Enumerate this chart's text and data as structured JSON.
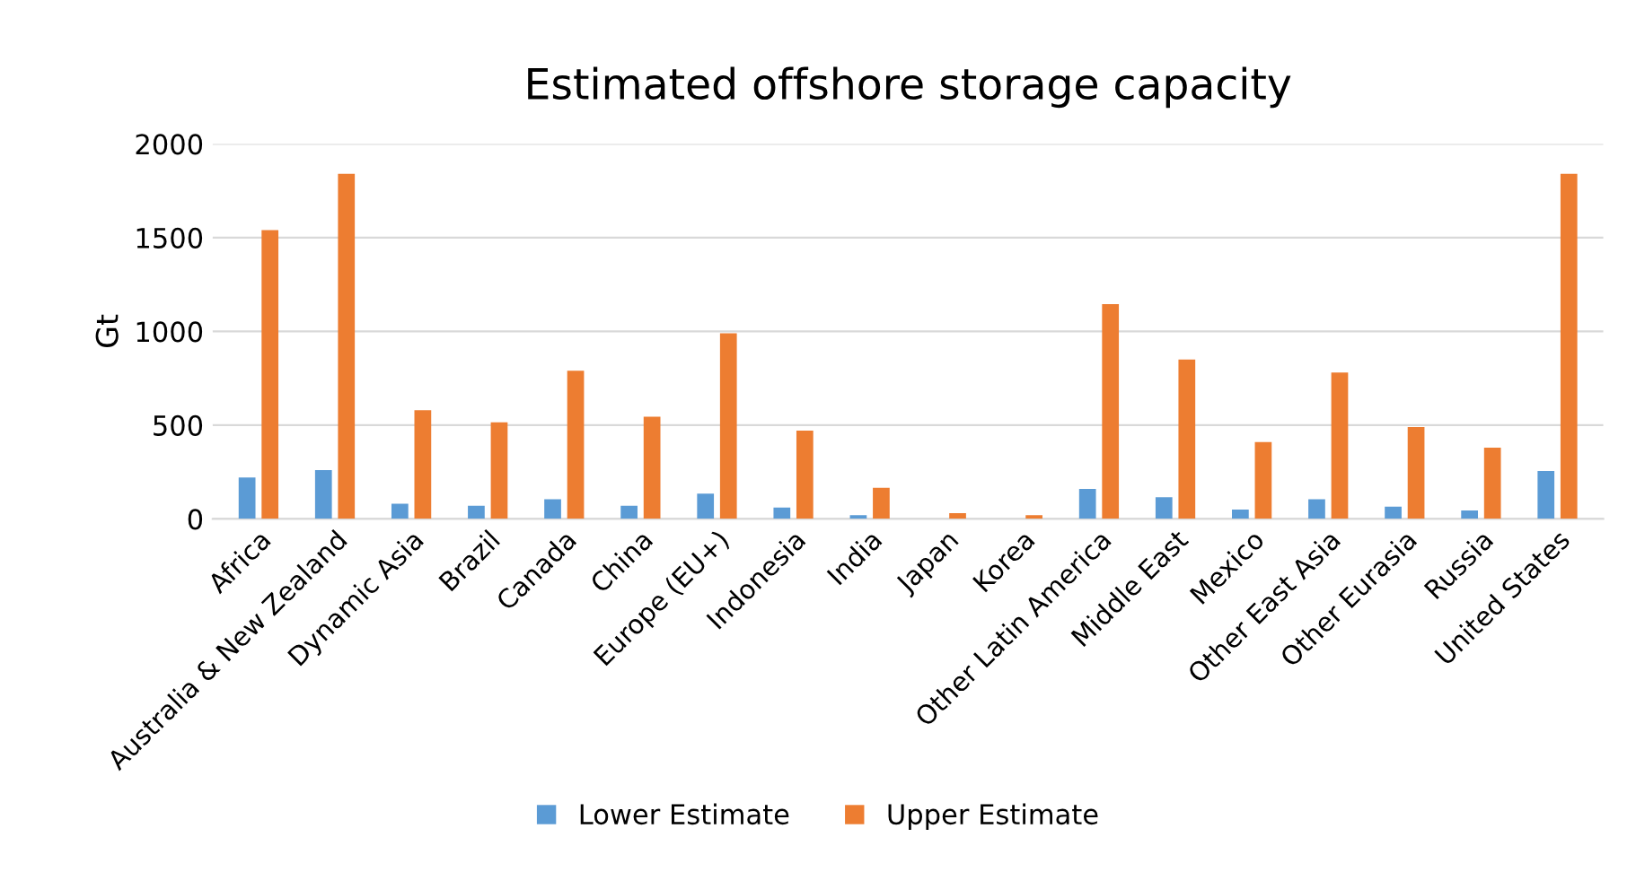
{
  "chart_data": {
    "type": "bar",
    "title": "Estimated offshore storage capacity",
    "ylabel": "Gt",
    "categories": [
      "Africa",
      "Australia & New Zealand",
      "Dynamic Asia",
      "Brazil",
      "Canada",
      "China",
      "Europe (EU+)",
      "Indonesia",
      "India",
      "Japan",
      "Korea",
      "Other Latin America",
      "Middle East",
      "Mexico",
      "Other East Asia",
      "Other Eurasia",
      "Russia",
      "United States"
    ],
    "series": [
      {
        "name": "Lower Estimate",
        "color": "#5b9bd5",
        "values": [
          220,
          260,
          80,
          70,
          105,
          70,
          135,
          60,
          20,
          0,
          0,
          160,
          115,
          50,
          105,
          65,
          45,
          255
        ]
      },
      {
        "name": "Upper Estimate",
        "color": "#ed7d31",
        "values": [
          1540,
          1840,
          580,
          515,
          790,
          545,
          990,
          470,
          165,
          30,
          20,
          1145,
          850,
          410,
          780,
          490,
          380,
          1840
        ]
      }
    ],
    "ylim": [
      0,
      2000
    ],
    "yticks": [
      0,
      500,
      1000,
      1500,
      2000
    ],
    "grid": "y",
    "legend": "bottom"
  }
}
